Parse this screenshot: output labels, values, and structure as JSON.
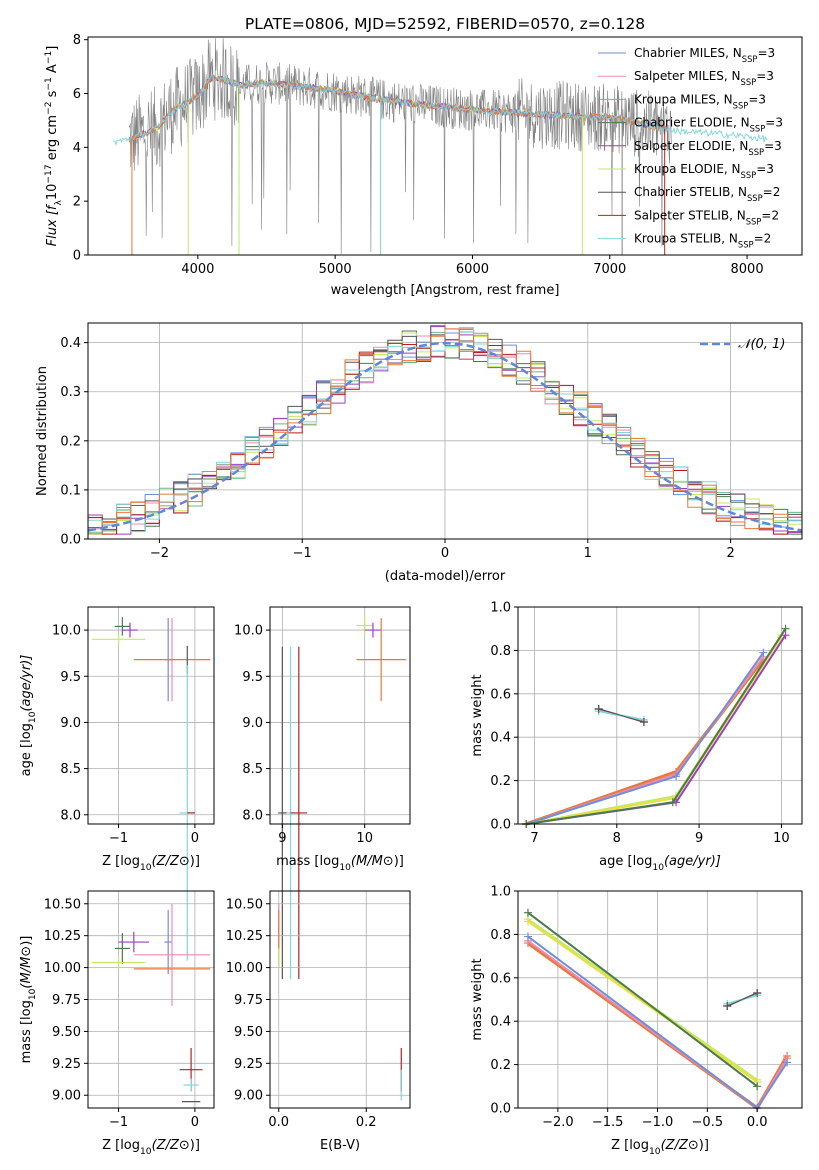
{
  "figure": {
    "title": "PLATE=0806, MJD=52592, FIBERID=0570, z=0.128"
  },
  "colors": {
    "chabrier_miles": "#6f8fd8",
    "salpeter_miles": "#f08ab0",
    "kroupa_miles": "#66b88a",
    "chabrier_elodie": "#4c7a4c",
    "salpeter_elodie": "#9b3fc0",
    "kroupa_elodie": "#c5e866",
    "chabrier_stelib": "#555555",
    "salpeter_stelib": "#b22222",
    "kroupa_stelib": "#7fd6dc",
    "orange": "#e8793a",
    "spectrum": "#808080",
    "gaussian": "#5f87d9",
    "yellow": "#e8e040"
  },
  "chart_data": [
    {
      "id": "spectrum",
      "type": "line",
      "xlabel": "wavelength [Angstrom, rest frame]",
      "ylabel": "Flux [f",
      "ylabel_parts": [
        "Flux [f",
        "λ",
        "10",
        "−17",
        " erg cm",
        "−2",
        " s",
        "−1",
        " A",
        "−1",
        "]"
      ],
      "xlim": [
        3200,
        8400
      ],
      "ylim": [
        0,
        8.1
      ],
      "xticks": [
        4000,
        5000,
        6000,
        7000,
        8000
      ],
      "yticks": [
        0,
        2,
        4,
        6,
        8
      ],
      "grid": false,
      "legend_loc": "upper right",
      "legend": [
        {
          "label": "Chabrier MILES, N",
          "sub": "SSP",
          "val": "=3",
          "color": "chabrier_miles"
        },
        {
          "label": "Salpeter MILES, N",
          "sub": "SSP",
          "val": "=3",
          "color": "salpeter_miles"
        },
        {
          "label": "Kroupa MILES, N",
          "sub": "SSP",
          "val": "=3",
          "color": "kroupa_miles"
        },
        {
          "label": "Chabrier ELODIE, N",
          "sub": "SSP",
          "val": "=3",
          "color": "chabrier_elodie"
        },
        {
          "label": "Salpeter ELODIE, N",
          "sub": "SSP",
          "val": "=3",
          "color": "salpeter_elodie"
        },
        {
          "label": "Kroupa ELODIE, N",
          "sub": "SSP",
          "val": "=3",
          "color": "kroupa_elodie"
        },
        {
          "label": "Chabrier STELIB, N",
          "sub": "SSP",
          "val": "=2",
          "color": "chabrier_stelib"
        },
        {
          "label": "Salpeter STELIB, N",
          "sub": "SSP",
          "val": "=2",
          "color": "salpeter_stelib"
        },
        {
          "label": "Kroupa STELIB, N",
          "sub": "SSP",
          "val": "=2",
          "color": "kroupa_stelib"
        }
      ],
      "continuum": [
        [
          3380,
          4.2
        ],
        [
          3500,
          4.3
        ],
        [
          3600,
          4.5
        ],
        [
          3700,
          4.7
        ],
        [
          3800,
          5.3
        ],
        [
          3900,
          5.6
        ],
        [
          4000,
          5.9
        ],
        [
          4100,
          6.6
        ],
        [
          4200,
          6.5
        ],
        [
          4300,
          6.3
        ],
        [
          4500,
          6.4
        ],
        [
          4700,
          6.3
        ],
        [
          5000,
          6.1
        ],
        [
          5300,
          5.8
        ],
        [
          5600,
          5.6
        ],
        [
          6000,
          5.4
        ],
        [
          6300,
          5.3
        ],
        [
          6600,
          5.2
        ],
        [
          7000,
          5.1
        ],
        [
          7300,
          4.8
        ],
        [
          7500,
          4.6
        ],
        [
          7800,
          4.5
        ],
        [
          8000,
          4.4
        ],
        [
          8150,
          4.3
        ]
      ],
      "absorption_lines": [
        3520,
        3930,
        4300,
        5330,
        6800,
        7090,
        7400
      ]
    },
    {
      "id": "residuals",
      "type": "line",
      "xlabel": "(data-model)/error",
      "ylabel": "Normed distribution",
      "xlim": [
        -2.5,
        2.5
      ],
      "ylim": [
        0,
        0.44
      ],
      "xticks": [
        -2,
        -1,
        0,
        1,
        2
      ],
      "yticks": [
        0.0,
        0.1,
        0.2,
        0.3,
        0.4
      ],
      "grid": true,
      "legend_loc": "upper right",
      "legend": [
        {
          "label": "𝒩(0, 1)",
          "color": "gaussian"
        }
      ],
      "series_colors": [
        "chabrier_miles",
        "salpeter_miles",
        "kroupa_miles",
        "chabrier_elodie",
        "salpeter_elodie",
        "kroupa_elodie",
        "chabrier_stelib",
        "salpeter_stelib",
        "kroupa_stelib",
        "orange"
      ]
    },
    {
      "id": "age_vs_Z",
      "type": "scatter",
      "xlabel": "Z [log",
      "xlabel_parts": [
        "Z [log",
        "10",
        "(Z/Z",
        "⊙",
        ")]"
      ],
      "ylabel_parts": [
        "age  [log",
        "10",
        "(age/yr)]"
      ],
      "xlim": [
        -1.4,
        0.25
      ],
      "ylim": [
        7.9,
        10.25
      ],
      "xticks": [
        -1,
        0
      ],
      "yticks": [
        8.0,
        8.5,
        9.0,
        9.5,
        10.0
      ],
      "grid": true,
      "points": [
        {
          "x": -0.95,
          "y": 10.04,
          "xerr": 0.1,
          "yerr": 0.1,
          "color": "chabrier_elodie"
        },
        {
          "x": -0.85,
          "y": 10.0,
          "xerr": 0.1,
          "yerr": 0.08,
          "color": "salpeter_elodie"
        },
        {
          "x": -1.0,
          "y": 9.9,
          "xerr": 0.35,
          "yerr": 0.07,
          "color": "kroupa_elodie"
        },
        {
          "x": -0.35,
          "y": 9.68,
          "xerr": 0.05,
          "yerr": 0.45,
          "color": "chabrier_miles"
        },
        {
          "x": -0.3,
          "y": 9.68,
          "xerr": 0.05,
          "yerr": 0.45,
          "color": "salpeter_miles"
        },
        {
          "x": -0.3,
          "y": 9.68,
          "xerr": 0.5,
          "yerr": 0.0,
          "color": "orange"
        },
        {
          "x": -0.1,
          "y": 9.68,
          "xerr": 0.0,
          "yerr": 0.15,
          "color": "chabrier_stelib"
        },
        {
          "x": -0.1,
          "y": 8.02,
          "xerr": 0.1,
          "yerr": 1.6,
          "color": "kroupa_stelib"
        },
        {
          "x": -0.05,
          "y": 8.02,
          "xerr": 0.05,
          "yerr": 0.0,
          "color": "salpeter_stelib"
        }
      ]
    },
    {
      "id": "age_vs_mass",
      "type": "scatter",
      "xlabel_parts": [
        "mass [log",
        "10",
        "(M/M",
        "⊙",
        ")]"
      ],
      "xlim": [
        8.85,
        10.55
      ],
      "ylim": [
        7.9,
        10.25
      ],
      "xticks": [
        9,
        10
      ],
      "yticks": [
        8.0,
        8.5,
        9.0,
        9.5,
        10.0
      ],
      "grid": true,
      "points": [
        {
          "x": 10.0,
          "y": 10.05,
          "xerr": 0.1,
          "yerr": 0.1,
          "color": "kroupa_elodie"
        },
        {
          "x": 10.1,
          "y": 10.0,
          "xerr": 0.1,
          "yerr": 0.08,
          "color": "salpeter_elodie"
        },
        {
          "x": 10.2,
          "y": 9.68,
          "xerr": 0.3,
          "yerr": 0.45,
          "color": "orange"
        },
        {
          "x": 9.0,
          "y": 8.02,
          "xerr": 0.05,
          "yerr": 1.8,
          "color": "chabrier_stelib"
        },
        {
          "x": 9.1,
          "y": 8.02,
          "xerr": 0.05,
          "yerr": 1.8,
          "color": "kroupa_stelib"
        },
        {
          "x": 9.2,
          "y": 8.02,
          "xerr": 0.1,
          "yerr": 1.8,
          "color": "salpeter_stelib"
        }
      ]
    },
    {
      "id": "weight_vs_age",
      "type": "line",
      "xlabel_parts": [
        "age  [log",
        "10",
        "(age/yr)]"
      ],
      "ylabel": "mass weight",
      "xlim": [
        6.8,
        10.25
      ],
      "ylim": [
        0,
        1.0
      ],
      "xticks": [
        7,
        8,
        9,
        10
      ],
      "yticks": [
        0.0,
        0.2,
        0.4,
        0.6,
        0.8,
        1.0
      ],
      "grid": true,
      "series": [
        {
          "x": [
            6.9,
            8.72,
            9.78
          ],
          "y": [
            0.0,
            0.24,
            0.76
          ],
          "color": "orange",
          "width": 3.5
        },
        {
          "x": [
            6.9,
            8.72,
            9.78
          ],
          "y": [
            0.0,
            0.23,
            0.77
          ],
          "color": "salpeter_miles",
          "width": 2
        },
        {
          "x": [
            6.9,
            8.72,
            9.78
          ],
          "y": [
            0.0,
            0.22,
            0.79
          ],
          "color": "chabrier_miles",
          "width": 2
        },
        {
          "x": [
            6.9,
            8.72,
            10.0
          ],
          "y": [
            0.0,
            0.13,
            0.87
          ],
          "color": "kroupa_elodie",
          "width": 2
        },
        {
          "x": [
            6.9,
            8.72,
            10.0
          ],
          "y": [
            0.0,
            0.12,
            0.86
          ],
          "color": "yellow",
          "width": 2
        },
        {
          "x": [
            6.9,
            8.72,
            10.05
          ],
          "y": [
            0.0,
            0.1,
            0.87
          ],
          "color": "salpeter_elodie",
          "width": 2
        },
        {
          "x": [
            6.9,
            8.68,
            10.05
          ],
          "y": [
            0.0,
            0.1,
            0.9
          ],
          "color": "chabrier_elodie",
          "width": 2
        },
        {
          "x": [
            7.78,
            8.33
          ],
          "y": [
            0.53,
            0.47
          ],
          "color": "salpeter_stelib",
          "width": 1.5
        },
        {
          "x": [
            7.78,
            8.33
          ],
          "y": [
            0.52,
            0.48
          ],
          "color": "kroupa_stelib",
          "width": 2
        },
        {
          "x": [
            7.78,
            8.33
          ],
          "y": [
            0.53,
            0.47
          ],
          "color": "chabrier_stelib",
          "width": 1
        }
      ]
    },
    {
      "id": "mass_vs_Z",
      "type": "scatter",
      "xlabel_parts": [
        "Z [log",
        "10",
        "(Z/Z",
        "⊙",
        ")]"
      ],
      "ylabel_parts": [
        "mass [log",
        "10",
        "(M/M",
        "⊙",
        ")]"
      ],
      "xlim": [
        -1.4,
        0.25
      ],
      "ylim": [
        8.9,
        10.6
      ],
      "xticks": [
        -1,
        0
      ],
      "yticks": [
        9.0,
        9.25,
        9.5,
        9.75,
        10.0,
        10.25,
        10.5
      ],
      "grid": true,
      "points": [
        {
          "x": -0.95,
          "y": 10.15,
          "xerr": 0.1,
          "yerr": 0.12,
          "color": "chabrier_elodie"
        },
        {
          "x": -0.8,
          "y": 10.2,
          "xerr": 0.2,
          "yerr": 0.08,
          "color": "salpeter_elodie"
        },
        {
          "x": -1.0,
          "y": 10.04,
          "xerr": 0.35,
          "yerr": 0.05,
          "color": "kroupa_elodie"
        },
        {
          "x": -0.35,
          "y": 10.2,
          "xerr": 0.05,
          "yerr": 0.25,
          "color": "chabrier_miles"
        },
        {
          "x": -0.3,
          "y": 10.1,
          "xerr": 0.5,
          "yerr": 0.4,
          "color": "salpeter_miles"
        },
        {
          "x": -0.3,
          "y": 9.99,
          "xerr": 0.5,
          "yerr": 0.0,
          "color": "orange"
        },
        {
          "x": -0.05,
          "y": 9.2,
          "xerr": 0.15,
          "yerr": 0.17,
          "color": "salpeter_stelib"
        },
        {
          "x": -0.05,
          "y": 9.08,
          "xerr": 0.1,
          "yerr": 0.05,
          "color": "kroupa_stelib"
        },
        {
          "x": -0.05,
          "y": 8.95,
          "xerr": 0.12,
          "yerr": 0.0,
          "color": "chabrier_stelib"
        }
      ]
    },
    {
      "id": "mass_vs_ebv",
      "type": "scatter",
      "xlabel": "E(B-V)",
      "xlim": [
        -0.02,
        0.3
      ],
      "ylim": [
        8.9,
        10.6
      ],
      "xticks": [
        0.0,
        0.2
      ],
      "yticks": [
        9.0,
        9.25,
        9.5,
        9.75,
        10.0,
        10.25,
        10.5
      ],
      "grid": true,
      "points": [
        {
          "x": 0.0,
          "y": 10.25,
          "xerr": 0.0,
          "yerr": 0.25,
          "color": "salpeter_miles"
        },
        {
          "x": 0.0,
          "y": 10.1,
          "xerr": 0.0,
          "yerr": 0.1,
          "color": "kroupa_elodie"
        },
        {
          "x": 0.0,
          "y": 10.3,
          "xerr": 0.0,
          "yerr": 0.15,
          "color": "orange"
        },
        {
          "x": 0.28,
          "y": 9.2,
          "xerr": 0.0,
          "yerr": 0.17,
          "color": "salpeter_stelib"
        },
        {
          "x": 0.28,
          "y": 9.08,
          "xerr": 0.0,
          "yerr": 0.12,
          "color": "kroupa_stelib"
        }
      ]
    },
    {
      "id": "weight_vs_Z",
      "type": "line",
      "xlabel_parts": [
        "Z [log",
        "10",
        "(Z/Z",
        "⊙",
        ")]"
      ],
      "ylabel": "mass weight",
      "xlim": [
        -2.4,
        0.45
      ],
      "ylim": [
        0,
        1.0
      ],
      "xticks": [
        -2.0,
        -1.5,
        -1.0,
        -0.5,
        0.0
      ],
      "yticks": [
        0.0,
        0.2,
        0.4,
        0.6,
        0.8,
        1.0
      ],
      "grid": true,
      "series": [
        {
          "x": [
            -2.3,
            0.0,
            0.3
          ],
          "y": [
            0.76,
            0.0,
            0.24
          ],
          "color": "orange",
          "width": 3.5
        },
        {
          "x": [
            -2.3,
            0.0,
            0.3
          ],
          "y": [
            0.77,
            0.0,
            0.23
          ],
          "color": "salpeter_miles",
          "width": 2
        },
        {
          "x": [
            -2.3,
            0.0,
            0.3
          ],
          "y": [
            0.79,
            0.0,
            0.21
          ],
          "color": "chabrier_miles",
          "width": 2
        },
        {
          "x": [
            -2.3,
            0.0
          ],
          "y": [
            0.87,
            0.13
          ],
          "color": "kroupa_elodie",
          "width": 2
        },
        {
          "x": [
            -2.3,
            0.0
          ],
          "y": [
            0.86,
            0.12
          ],
          "color": "yellow",
          "width": 2
        },
        {
          "x": [
            -2.3,
            0.0
          ],
          "y": [
            0.9,
            0.1
          ],
          "color": "chabrier_elodie",
          "width": 2
        },
        {
          "x": [
            -0.3,
            0.0
          ],
          "y": [
            0.47,
            0.53
          ],
          "color": "salpeter_stelib",
          "width": 1.5
        },
        {
          "x": [
            -0.3,
            0.0
          ],
          "y": [
            0.48,
            0.52
          ],
          "color": "kroupa_stelib",
          "width": 2
        },
        {
          "x": [
            -0.3,
            0.0
          ],
          "y": [
            0.47,
            0.53
          ],
          "color": "chabrier_stelib",
          "width": 1
        }
      ]
    }
  ]
}
